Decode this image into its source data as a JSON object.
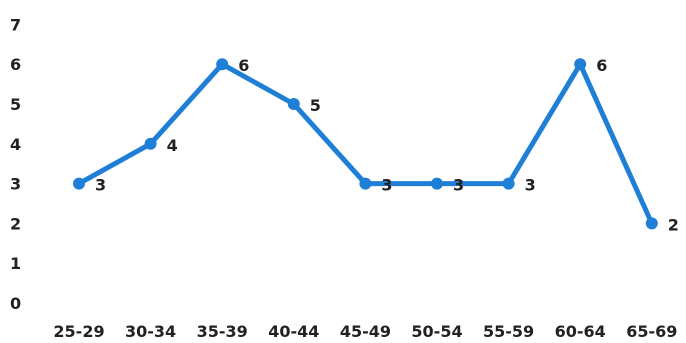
{
  "chart_data": {
    "type": "line",
    "title": "",
    "xlabel": "",
    "ylabel": "",
    "categories": [
      "25-29",
      "30-34",
      "35-39",
      "40-44",
      "45-49",
      "50-54",
      "55-59",
      "60-64",
      "65-69"
    ],
    "series": [
      {
        "values": [
          3,
          4,
          6,
          5,
          3,
          3,
          3,
          6,
          2
        ]
      }
    ],
    "data_labels": [
      "3",
      "4",
      "6",
      "5",
      "3",
      "3",
      "3",
      "6",
      "2"
    ],
    "y_ticks": [
      "0",
      "1",
      "2",
      "3",
      "4",
      "5",
      "6",
      "7"
    ],
    "ylim": [
      0,
      7
    ],
    "grid": false,
    "legend": "none",
    "colors": {
      "line": "#1f7fd6",
      "marker": "#1f7fd6",
      "text": "#222222",
      "background": "#ffffff"
    }
  }
}
